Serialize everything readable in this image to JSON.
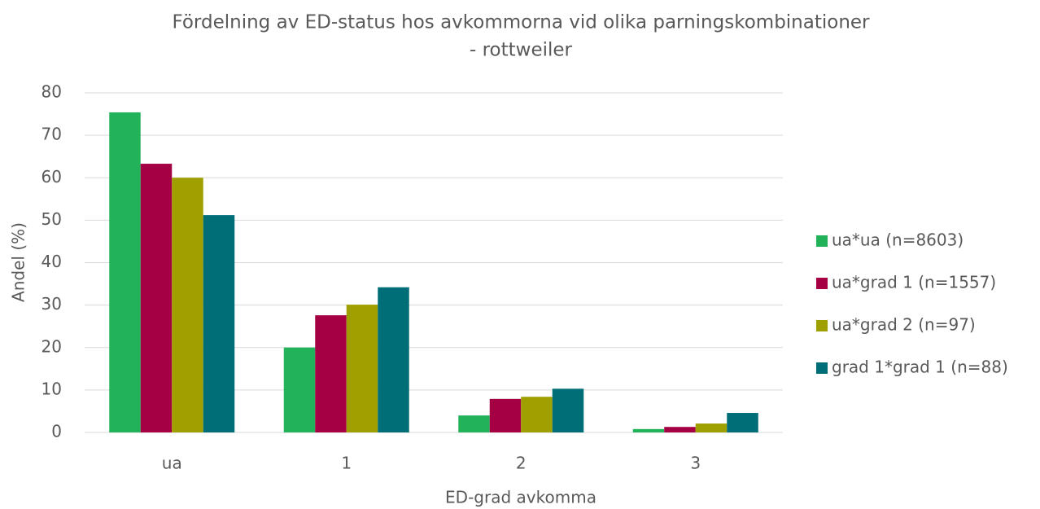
{
  "chart_data": {
    "type": "bar",
    "title": [
      "Fördelning av ED-status hos avkommorna vid olika parningskombinationer",
      "- rottweiler"
    ],
    "x_label": "ED-grad avkomma",
    "y_label": "Andel (%)",
    "categories": [
      "ua",
      "1",
      "2",
      "3"
    ],
    "series": [
      {
        "name": "ua*ua (n=8603)",
        "color": "#22b35a",
        "values": [
          75.4,
          20.0,
          4.0,
          0.8
        ]
      },
      {
        "name": "ua*grad 1 (n=1557)",
        "color": "#a50044",
        "values": [
          63.3,
          27.6,
          7.9,
          1.3
        ]
      },
      {
        "name": "ua*grad 2 (n=97)",
        "color": "#9fa000",
        "values": [
          60.0,
          30.1,
          8.4,
          2.1
        ]
      },
      {
        "name": "grad 1*grad 1 (n=88)",
        "color": "#006e77",
        "values": [
          51.2,
          34.2,
          10.3,
          4.6
        ]
      }
    ],
    "ylim": [
      0,
      80
    ],
    "yticks": [
      0,
      10,
      20,
      30,
      40,
      50,
      60,
      70,
      80
    ],
    "grid": true,
    "legend": "right"
  }
}
